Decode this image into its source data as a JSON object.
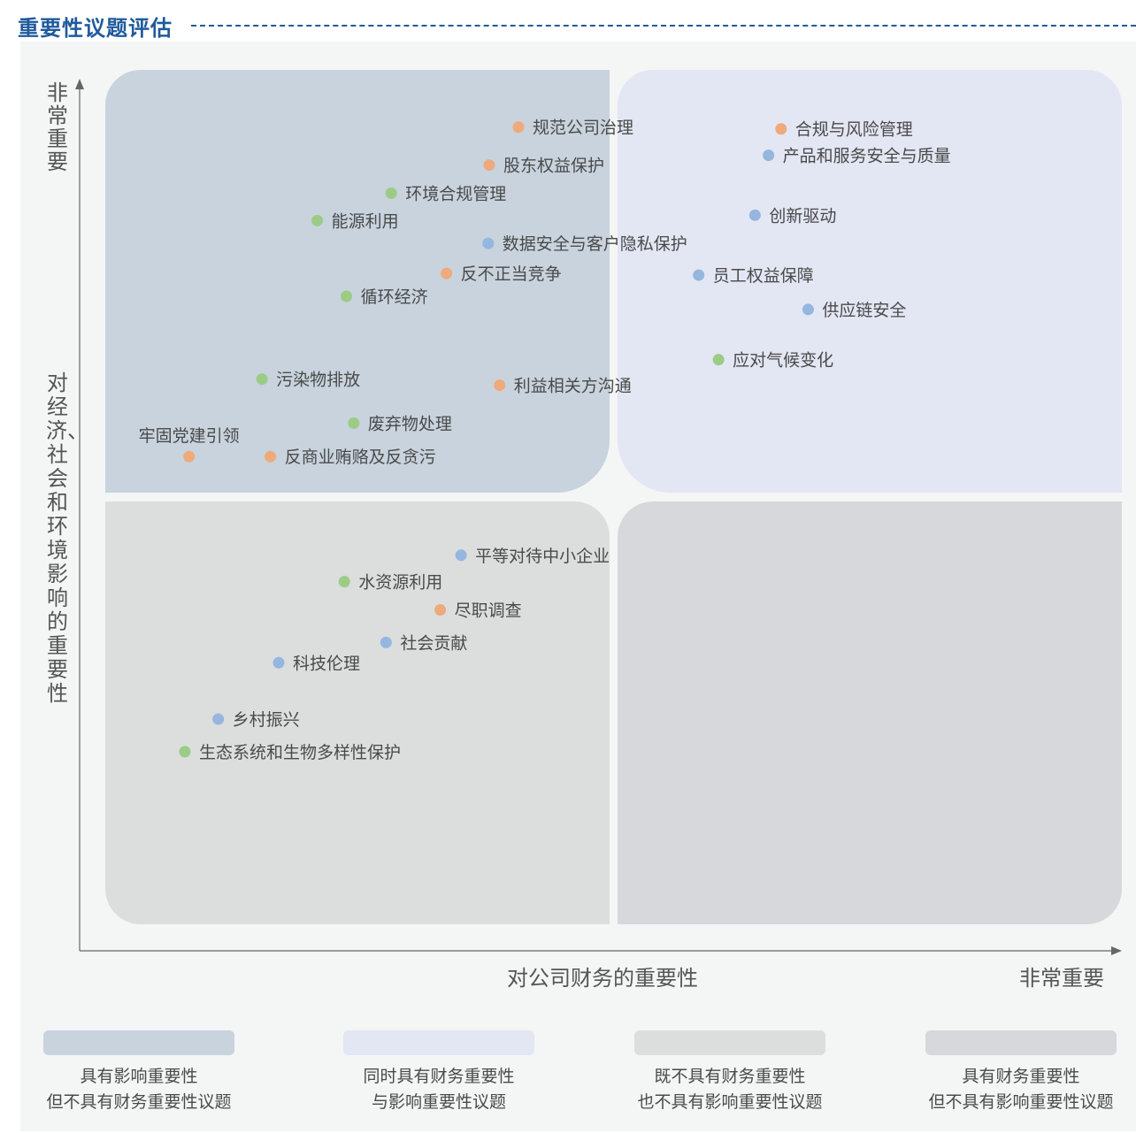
{
  "page": {
    "title": "重要性议题评估"
  },
  "colors": {
    "impact_only": "#c8d3de",
    "both": "#e3e6f3",
    "neither": "#dcdddd",
    "financial_only": "#d6d8db",
    "orange": "#eeaa7a",
    "blue": "#95b6de",
    "green": "#9ccb86"
  },
  "chart_data": {
    "type": "scatter",
    "title": "重要性议题评估",
    "xlabel": "对公司财务的重要性",
    "xlabel_end": "非常重要",
    "ylabel": "对经济、社会和环境影响的重要性",
    "ylabel_end": "非常重要",
    "xlim": [
      0,
      100
    ],
    "ylim": [
      0,
      100
    ],
    "grid": false,
    "legend_position": "bottom",
    "quadrants": [
      {
        "key": "impact_only",
        "label_line1": "具有影响重要性",
        "label_line2": "但不具有财务重要性议题",
        "color": "#c8d3de"
      },
      {
        "key": "both",
        "label_line1": "同时具有财务重要性",
        "label_line2": "与影响重要性议题",
        "color": "#e3e6f3"
      },
      {
        "key": "neither",
        "label_line1": "既不具有财务重要性",
        "label_line2": "也不具有影响重要性议题",
        "color": "#dcdddd"
      },
      {
        "key": "financial_only",
        "label_line1": "具有财务重要性",
        "label_line2": "但不具有影响重要性议题",
        "color": "#d6d8db"
      }
    ],
    "points": [
      {
        "label": "规范公司治理",
        "x": 42.1,
        "y": 93.5,
        "group": "orange"
      },
      {
        "label": "合规与风险管理",
        "x": 67.3,
        "y": 93.3,
        "group": "orange"
      },
      {
        "label": "产品和服务安全与质量",
        "x": 66.1,
        "y": 90.3,
        "group": "blue"
      },
      {
        "label": "股东权益保护",
        "x": 39.3,
        "y": 89.2,
        "group": "orange"
      },
      {
        "label": "环境合规管理",
        "x": 29.9,
        "y": 86.0,
        "group": "green"
      },
      {
        "label": "能源利用",
        "x": 22.8,
        "y": 82.9,
        "group": "green"
      },
      {
        "label": "创新驱动",
        "x": 64.8,
        "y": 83.5,
        "group": "blue"
      },
      {
        "label": "数据安全与客户隐私保护",
        "x": 39.2,
        "y": 80.3,
        "group": "blue"
      },
      {
        "label": "反不正当竞争",
        "x": 35.2,
        "y": 76.9,
        "group": "orange"
      },
      {
        "label": "员工权益保障",
        "x": 59.4,
        "y": 76.7,
        "group": "blue"
      },
      {
        "label": "循环经济",
        "x": 25.6,
        "y": 74.3,
        "group": "green"
      },
      {
        "label": "供应链安全",
        "x": 69.9,
        "y": 72.8,
        "group": "blue"
      },
      {
        "label": "应对气候变化",
        "x": 61.3,
        "y": 67.1,
        "group": "green"
      },
      {
        "label": "污染物排放",
        "x": 17.5,
        "y": 64.9,
        "group": "green"
      },
      {
        "label": "利益相关方沟通",
        "x": 40.3,
        "y": 64.2,
        "group": "orange"
      },
      {
        "label": "废弃物处理",
        "x": 26.3,
        "y": 59.9,
        "group": "green"
      },
      {
        "label": "牢固党建引领",
        "x": 10.5,
        "y": 56.1,
        "group": "orange",
        "label_above": true
      },
      {
        "label": "反商业贿赂及反贪污",
        "x": 18.3,
        "y": 56.1,
        "group": "orange"
      },
      {
        "label": "平等对待中小企业",
        "x": 36.6,
        "y": 44.9,
        "group": "blue"
      },
      {
        "label": "水资源利用",
        "x": 25.4,
        "y": 41.9,
        "group": "green"
      },
      {
        "label": "尽职调查",
        "x": 34.6,
        "y": 38.7,
        "group": "orange"
      },
      {
        "label": "社会贡献",
        "x": 29.4,
        "y": 35.0,
        "group": "blue"
      },
      {
        "label": "科技伦理",
        "x": 19.1,
        "y": 32.7,
        "group": "blue"
      },
      {
        "label": "乡村振兴",
        "x": 13.3,
        "y": 26.3,
        "group": "blue"
      },
      {
        "label": "生态系统和生物多样性保护",
        "x": 10.1,
        "y": 22.6,
        "group": "green"
      }
    ]
  }
}
